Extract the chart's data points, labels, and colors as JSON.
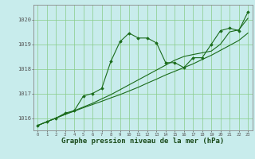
{
  "background_color": "#c8ecec",
  "grid_color": "#88cc88",
  "line_color": "#1a6b1a",
  "marker_color": "#1a6b1a",
  "xlabel": "Graphe pression niveau de la mer (hPa)",
  "ylim": [
    1015.5,
    1020.6
  ],
  "xlim": [
    -0.5,
    23.5
  ],
  "yticks": [
    1016,
    1017,
    1018,
    1019,
    1020
  ],
  "xticks": [
    0,
    1,
    2,
    3,
    4,
    5,
    6,
    7,
    8,
    9,
    10,
    11,
    12,
    13,
    14,
    15,
    16,
    17,
    18,
    19,
    20,
    21,
    22,
    23
  ],
  "series1": [
    1015.7,
    1015.85,
    1016.0,
    1016.2,
    1016.3,
    1016.9,
    1017.0,
    1017.2,
    1018.3,
    1019.1,
    1019.45,
    1019.25,
    1019.25,
    1019.05,
    1018.25,
    1018.25,
    1018.05,
    1018.45,
    1018.45,
    1019.0,
    1019.55,
    1019.65,
    1019.55,
    1020.3
  ],
  "series2": [
    1015.7,
    1015.85,
    1016.0,
    1016.15,
    1016.28,
    1016.42,
    1016.55,
    1016.68,
    1016.82,
    1016.95,
    1017.1,
    1017.25,
    1017.42,
    1017.58,
    1017.75,
    1017.9,
    1018.05,
    1018.2,
    1018.38,
    1018.55,
    1018.75,
    1018.95,
    1019.15,
    1019.45
  ],
  "series3": [
    1015.7,
    1015.85,
    1016.0,
    1016.15,
    1016.3,
    1016.45,
    1016.6,
    1016.78,
    1016.95,
    1017.15,
    1017.35,
    1017.55,
    1017.75,
    1017.95,
    1018.15,
    1018.35,
    1018.5,
    1018.58,
    1018.65,
    1018.72,
    1019.0,
    1019.5,
    1019.58,
    1020.05
  ]
}
